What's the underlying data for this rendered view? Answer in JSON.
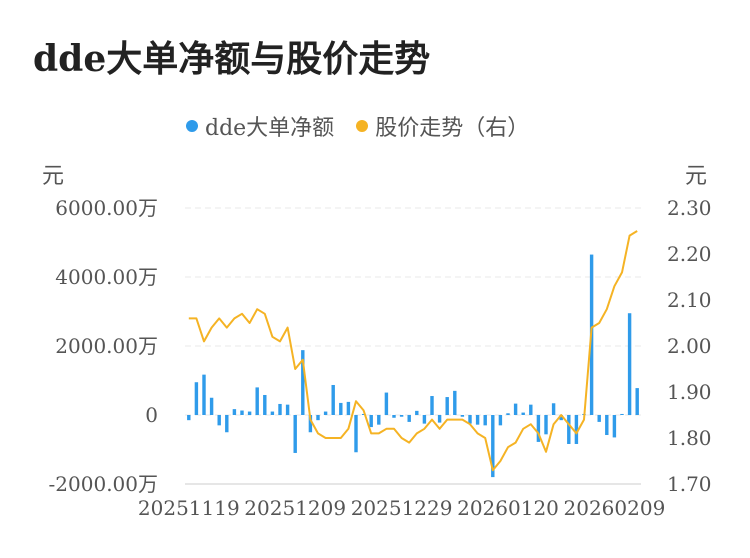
{
  "title": "dde大单净额与股价走势",
  "legend": [
    {
      "label": "dde大单净额",
      "color": "#2f9bea"
    },
    {
      "label": "股价走势（右）",
      "color": "#f5b324"
    }
  ],
  "units": {
    "left": "元",
    "right": "元"
  },
  "chart_data": {
    "type": "bar+line",
    "title": "dde大单净额与股价走势",
    "left_axis": {
      "unit": "元",
      "range": [
        -2000,
        6000
      ],
      "ticks": [
        {
          "value": 6000,
          "label": "6000.00万"
        },
        {
          "value": 4000,
          "label": "4000.00万"
        },
        {
          "value": 2000,
          "label": "2000.00万"
        },
        {
          "value": 0,
          "label": "0"
        },
        {
          "value": -2000,
          "label": "-2000.00万"
        }
      ]
    },
    "right_axis": {
      "unit": "元",
      "range": [
        1.7,
        2.3
      ],
      "ticks": [
        {
          "value": 2.3,
          "label": "2.30"
        },
        {
          "value": 2.2,
          "label": "2.20"
        },
        {
          "value": 2.1,
          "label": "2.10"
        },
        {
          "value": 2.0,
          "label": "2.00"
        },
        {
          "value": 1.9,
          "label": "1.90"
        },
        {
          "value": 1.8,
          "label": "1.80"
        },
        {
          "value": 1.7,
          "label": "1.70"
        }
      ]
    },
    "x_tick_labels": [
      {
        "index": 0,
        "label": "20251119"
      },
      {
        "index": 14,
        "label": "20251209"
      },
      {
        "index": 28,
        "label": "20251229"
      },
      {
        "index": 42,
        "label": "20260120"
      },
      {
        "index": 56,
        "label": "20260209"
      }
    ],
    "grid": true,
    "legend_position": "top",
    "series": [
      {
        "name": "dde大单净额",
        "type": "bar",
        "axis": "left",
        "color": "#2f9bea",
        "values": [
          -150,
          950,
          1170,
          500,
          -300,
          -500,
          170,
          130,
          100,
          800,
          580,
          100,
          320,
          300,
          -1100,
          1880,
          -500,
          -150,
          100,
          870,
          350,
          380,
          -1080,
          30,
          -350,
          -280,
          650,
          -80,
          -50,
          -200,
          120,
          -250,
          550,
          -220,
          520,
          700,
          -50,
          -250,
          -280,
          -300,
          -1800,
          -300,
          50,
          330,
          70,
          300,
          -780,
          -560,
          340,
          -150,
          -840,
          -840,
          30,
          4650,
          -200,
          -580,
          -650,
          30,
          2950,
          780
        ]
      },
      {
        "name": "股价走势（右）",
        "type": "line",
        "axis": "right",
        "color": "#f5b324",
        "values": [
          2.06,
          2.06,
          2.01,
          2.04,
          2.06,
          2.04,
          2.06,
          2.07,
          2.05,
          2.08,
          2.07,
          2.02,
          2.01,
          2.04,
          1.95,
          1.97,
          1.84,
          1.81,
          1.8,
          1.8,
          1.8,
          1.82,
          1.88,
          1.86,
          1.81,
          1.81,
          1.82,
          1.82,
          1.8,
          1.79,
          1.81,
          1.82,
          1.84,
          1.82,
          1.84,
          1.84,
          1.84,
          1.83,
          1.81,
          1.8,
          1.73,
          1.75,
          1.78,
          1.79,
          1.82,
          1.83,
          1.81,
          1.77,
          1.83,
          1.85,
          1.83,
          1.81,
          1.84,
          2.04,
          2.05,
          2.08,
          2.13,
          2.16,
          2.24,
          2.25
        ]
      }
    ]
  }
}
